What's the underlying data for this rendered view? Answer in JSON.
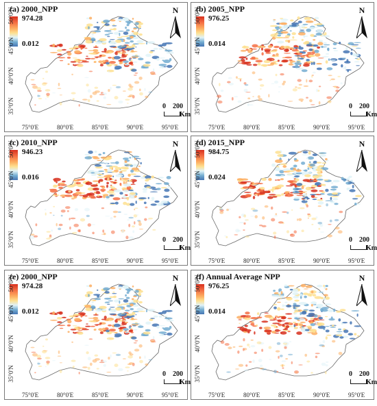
{
  "panels": [
    {
      "title": "(a) 2000_NPP",
      "max": "974.28",
      "min": "0.012"
    },
    {
      "title": "(b) 2005_NPP",
      "max": "976.25",
      "min": "0.014"
    },
    {
      "title": "(c) 2010_NPP",
      "max": "946.23",
      "min": "0.016"
    },
    {
      "title": "(d) 2015_NPP",
      "max": "984.75",
      "min": "0.024"
    },
    {
      "title": "(e) 2000_NPP",
      "max": "974.28",
      "min": "0.012"
    },
    {
      "title": "(f) Annual Average NPP",
      "max": "976.25",
      "min": "0.014"
    }
  ],
  "north_label": "N",
  "scale": {
    "zero": "0",
    "dist": "200",
    "unit": "Km"
  },
  "lat_ticks": [
    "50°0'N",
    "45°0'N",
    "40°0'N",
    "35°0'N"
  ],
  "lon_ticks": [
    "75°0'E",
    "80°0'E",
    "85°0'E",
    "90°0'E",
    "95°0'E"
  ],
  "colors": {
    "high": "#d7301f",
    "mid": "#fee090",
    "low": "#4575b4"
  }
}
